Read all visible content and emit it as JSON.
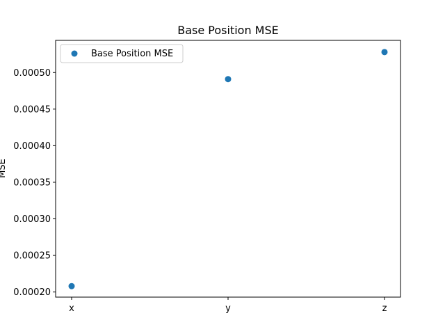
{
  "chart_data": {
    "type": "scatter",
    "title": "Base Position MSE",
    "xlabel": "",
    "ylabel": "MSE",
    "categories": [
      "x",
      "y",
      "z"
    ],
    "series": [
      {
        "name": "Base Position MSE",
        "values": [
          0.000208,
          0.000491,
          0.000528
        ],
        "color": "#1f77b4"
      }
    ],
    "ylim": [
      0.000193,
      0.000544
    ],
    "yticks": [
      0.0002,
      0.00025,
      0.0003,
      0.00035,
      0.0004,
      0.00045,
      0.0005
    ],
    "ytick_labels": [
      "0.00020",
      "0.00025",
      "0.00030",
      "0.00035",
      "0.00040",
      "0.00045",
      "0.00050"
    ],
    "legend": "top-left",
    "grid": false
  }
}
